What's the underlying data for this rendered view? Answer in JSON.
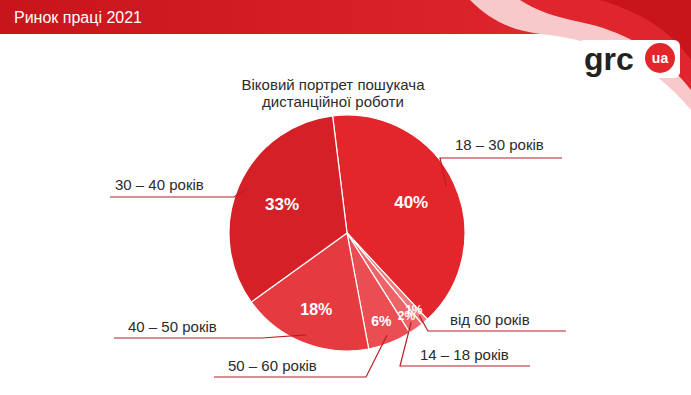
{
  "header": {
    "title": "Ринок праці 2021",
    "logo": "grc",
    "logo_badge": "ua"
  },
  "chart_data": {
    "type": "pie",
    "title": "Віковий портрет пошукача дистанційної роботи",
    "categories": [
      "18 – 30 років",
      "від 60 років",
      "14 – 18 років",
      "50 – 60 років",
      "40 – 50 років",
      "30 – 40 років"
    ],
    "values": [
      40,
      1,
      2,
      6,
      18,
      33
    ],
    "value_labels": [
      "40%",
      "1%",
      "2%",
      "6%",
      "18%",
      "33%"
    ],
    "colors": [
      "#e3262c",
      "#f27a7d",
      "#ee6367",
      "#ea4d52",
      "#e53b40",
      "#d62027"
    ],
    "data_labels": true
  }
}
